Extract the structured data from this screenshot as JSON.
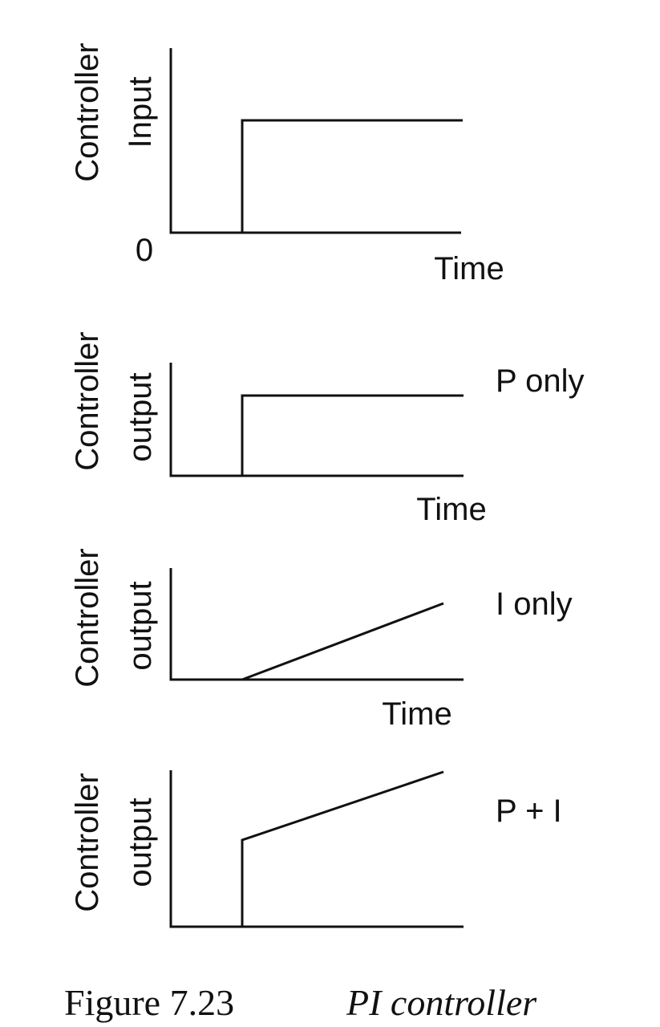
{
  "panels": [
    {
      "y_label": [
        "Controller",
        "Input"
      ],
      "zero_label": "0",
      "x_label": "Time"
    },
    {
      "y_label": [
        "Controller",
        "output"
      ],
      "x_label": "Time",
      "annotation": "P only"
    },
    {
      "y_label": [
        "Controller",
        "output"
      ],
      "x_label": "Time",
      "annotation": "I only"
    },
    {
      "y_label": [
        "Controller",
        "output"
      ],
      "annotation": "P + I"
    }
  ],
  "caption": {
    "label": "Figure 7.23",
    "title": "PI controller"
  }
}
